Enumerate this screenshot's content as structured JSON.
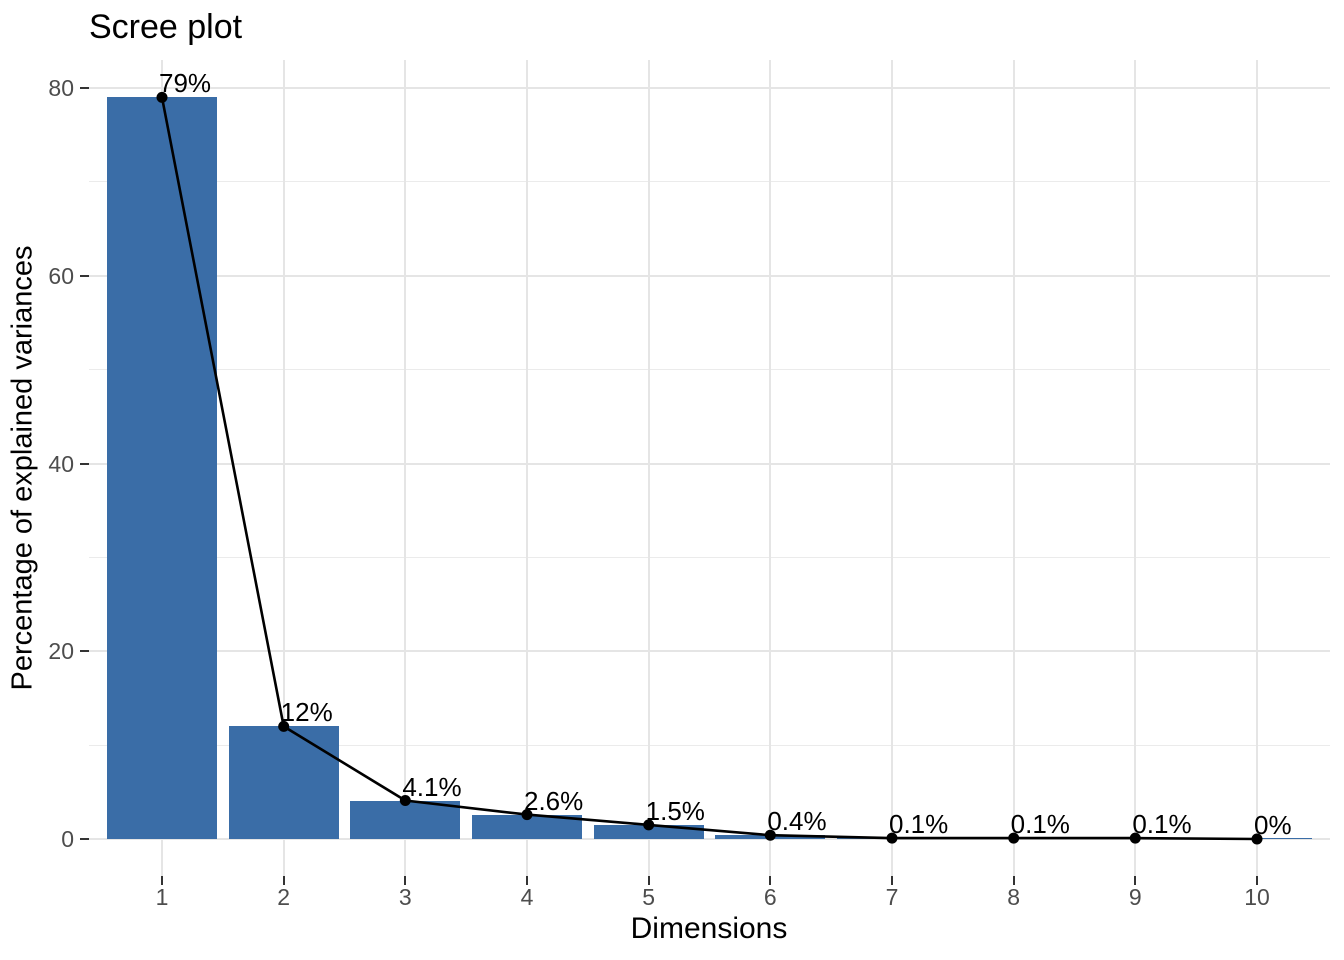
{
  "chart": {
    "title": "Scree plot",
    "x_axis": {
      "title": "Dimensions",
      "tick_labels": [
        "1",
        "2",
        "3",
        "4",
        "5",
        "6",
        "7",
        "8",
        "9",
        "10"
      ]
    },
    "y_axis": {
      "title": "Percentage of explained variances",
      "tick_labels": [
        "0",
        "20",
        "40",
        "60",
        "80"
      ],
      "tick_values": [
        0,
        20,
        40,
        60,
        80
      ],
      "minor_gridline_values": [
        10,
        30,
        50,
        70
      ]
    }
  },
  "chart_data": {
    "type": "bar",
    "overlay": "line",
    "title": "Scree plot",
    "xlabel": "Dimensions",
    "ylabel": "Percentage of explained variances",
    "categories": [
      1,
      2,
      3,
      4,
      5,
      6,
      7,
      8,
      9,
      10
    ],
    "values": [
      79,
      12,
      4.1,
      2.6,
      1.5,
      0.4,
      0.1,
      0.1,
      0.1,
      0
    ],
    "point_labels": [
      "79%",
      "12%",
      "4.1%",
      "2.6%",
      "1.5%",
      "0.4%",
      "0.1%",
      "0.1%",
      "0.1%",
      "0%"
    ],
    "ylim": [
      0,
      80
    ],
    "grid": "on",
    "legend": "none"
  },
  "colors": {
    "bar_fill": "#3A6DA7",
    "line": "#000000",
    "point": "#000000",
    "grid_major": "#E5E5E5",
    "grid_minor": "#EBEBEB",
    "tick_mark": "#333333",
    "tick_text": "#4D4D4D",
    "title_text": "#000000",
    "background": "#FFFFFF"
  }
}
